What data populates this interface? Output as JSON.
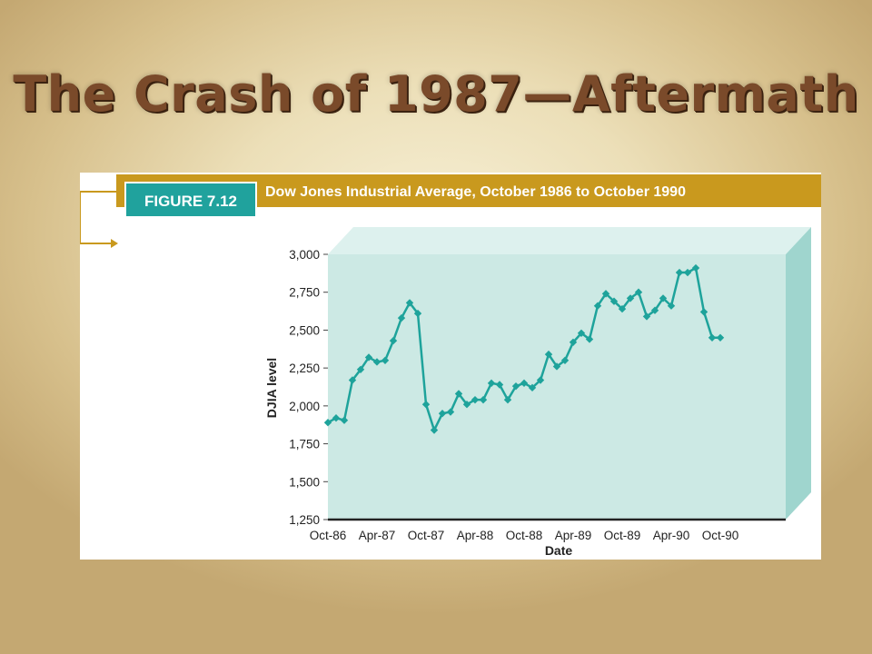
{
  "slide": {
    "title": "The Crash of 1987—Aftermath"
  },
  "figure": {
    "label": "FIGURE 7.12",
    "caption": "Dow Jones Industrial Average, October 1986 to October 1990",
    "colors": {
      "header_bar": "#c9991e",
      "label_box": "#20a29d",
      "plot_face": "#cce9e4",
      "plot_side": "#9fd5ce",
      "plot_top": "#ddf1ee",
      "series_line": "#1ea39b"
    }
  },
  "chart_data": {
    "type": "line",
    "title": "Dow Jones Industrial Average, October 1986 to October 1990",
    "xlabel": "Date",
    "ylabel": "DJIA level",
    "ylim": [
      1250,
      3000
    ],
    "yticks": [
      3000,
      2750,
      2500,
      2250,
      2000,
      1750,
      1500,
      1250
    ],
    "ytick_labels": [
      "3,000",
      "2,750",
      "2,500",
      "2,250",
      "2,000",
      "1,750",
      "1,500",
      "1,250"
    ],
    "xtick_labels": [
      "Oct-86",
      "Apr-87",
      "Oct-87",
      "Apr-88",
      "Oct-88",
      "Apr-89",
      "Oct-89",
      "Apr-90",
      "Oct-90"
    ],
    "x": [
      "Oct-86",
      "Nov-86",
      "Dec-86",
      "Jan-87",
      "Feb-87",
      "Mar-87",
      "Apr-87",
      "May-87",
      "Jun-87",
      "Jul-87",
      "Aug-87",
      "Sep-87",
      "Oct-87",
      "Nov-87",
      "Dec-87",
      "Jan-88",
      "Feb-88",
      "Mar-88",
      "Apr-88",
      "May-88",
      "Jun-88",
      "Jul-88",
      "Aug-88",
      "Sep-88",
      "Oct-88",
      "Nov-88",
      "Dec-88",
      "Jan-89",
      "Feb-89",
      "Mar-89",
      "Apr-89",
      "May-89",
      "Jun-89",
      "Jul-89",
      "Aug-89",
      "Sep-89",
      "Oct-89",
      "Nov-89",
      "Dec-89",
      "Jan-90",
      "Feb-90",
      "Mar-90",
      "Apr-90",
      "May-90",
      "Jun-90",
      "Jul-90",
      "Aug-90",
      "Sep-90",
      "Oct-90"
    ],
    "series": [
      {
        "values": [
          1890,
          1920,
          1905,
          2170,
          2240,
          2320,
          2290,
          2300,
          2430,
          2580,
          2680,
          2610,
          2010,
          1840,
          1950,
          1960,
          2080,
          2010,
          2040,
          2040,
          2150,
          2140,
          2040,
          2130,
          2150,
          2120,
          2170,
          2340,
          2260,
          2300,
          2420,
          2480,
          2440,
          2660,
          2740,
          2690,
          2640,
          2710,
          2750,
          2590,
          2630,
          2710,
          2660,
          2880,
          2880,
          2910,
          2620,
          2450,
          2450
        ]
      }
    ],
    "grid": false,
    "legend": "none"
  }
}
